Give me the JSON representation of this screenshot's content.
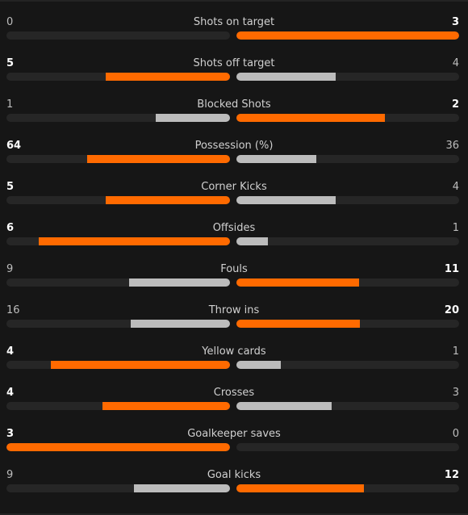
{
  "colors": {
    "win": "#ff6a00",
    "lose": "#bcbcbc",
    "track": "#262626",
    "background": "#161616"
  },
  "stats": [
    {
      "label": "Shots on target",
      "home": "0",
      "away": "3",
      "home_share": 0,
      "away_share": 1
    },
    {
      "label": "Shots off target",
      "home": "5",
      "away": "4",
      "home_share": 0.5556,
      "away_share": 0.4444
    },
    {
      "label": "Blocked Shots",
      "home": "1",
      "away": "2",
      "home_share": 0.3333,
      "away_share": 0.6667
    },
    {
      "label": "Possession (%)",
      "home": "64",
      "away": "36",
      "home_share": 0.64,
      "away_share": 0.36
    },
    {
      "label": "Corner Kicks",
      "home": "5",
      "away": "4",
      "home_share": 0.5556,
      "away_share": 0.4444
    },
    {
      "label": "Offsides",
      "home": "6",
      "away": "1",
      "home_share": 0.8571,
      "away_share": 0.1429
    },
    {
      "label": "Fouls",
      "home": "9",
      "away": "11",
      "home_share": 0.45,
      "away_share": 0.55
    },
    {
      "label": "Throw ins",
      "home": "16",
      "away": "20",
      "home_share": 0.4444,
      "away_share": 0.5556
    },
    {
      "label": "Yellow cards",
      "home": "4",
      "away": "1",
      "home_share": 0.8,
      "away_share": 0.2
    },
    {
      "label": "Crosses",
      "home": "4",
      "away": "3",
      "home_share": 0.5714,
      "away_share": 0.4286
    },
    {
      "label": "Goalkeeper saves",
      "home": "3",
      "away": "0",
      "home_share": 1,
      "away_share": 0
    },
    {
      "label": "Goal kicks",
      "home": "9",
      "away": "12",
      "home_share": 0.4286,
      "away_share": 0.5714
    }
  ]
}
